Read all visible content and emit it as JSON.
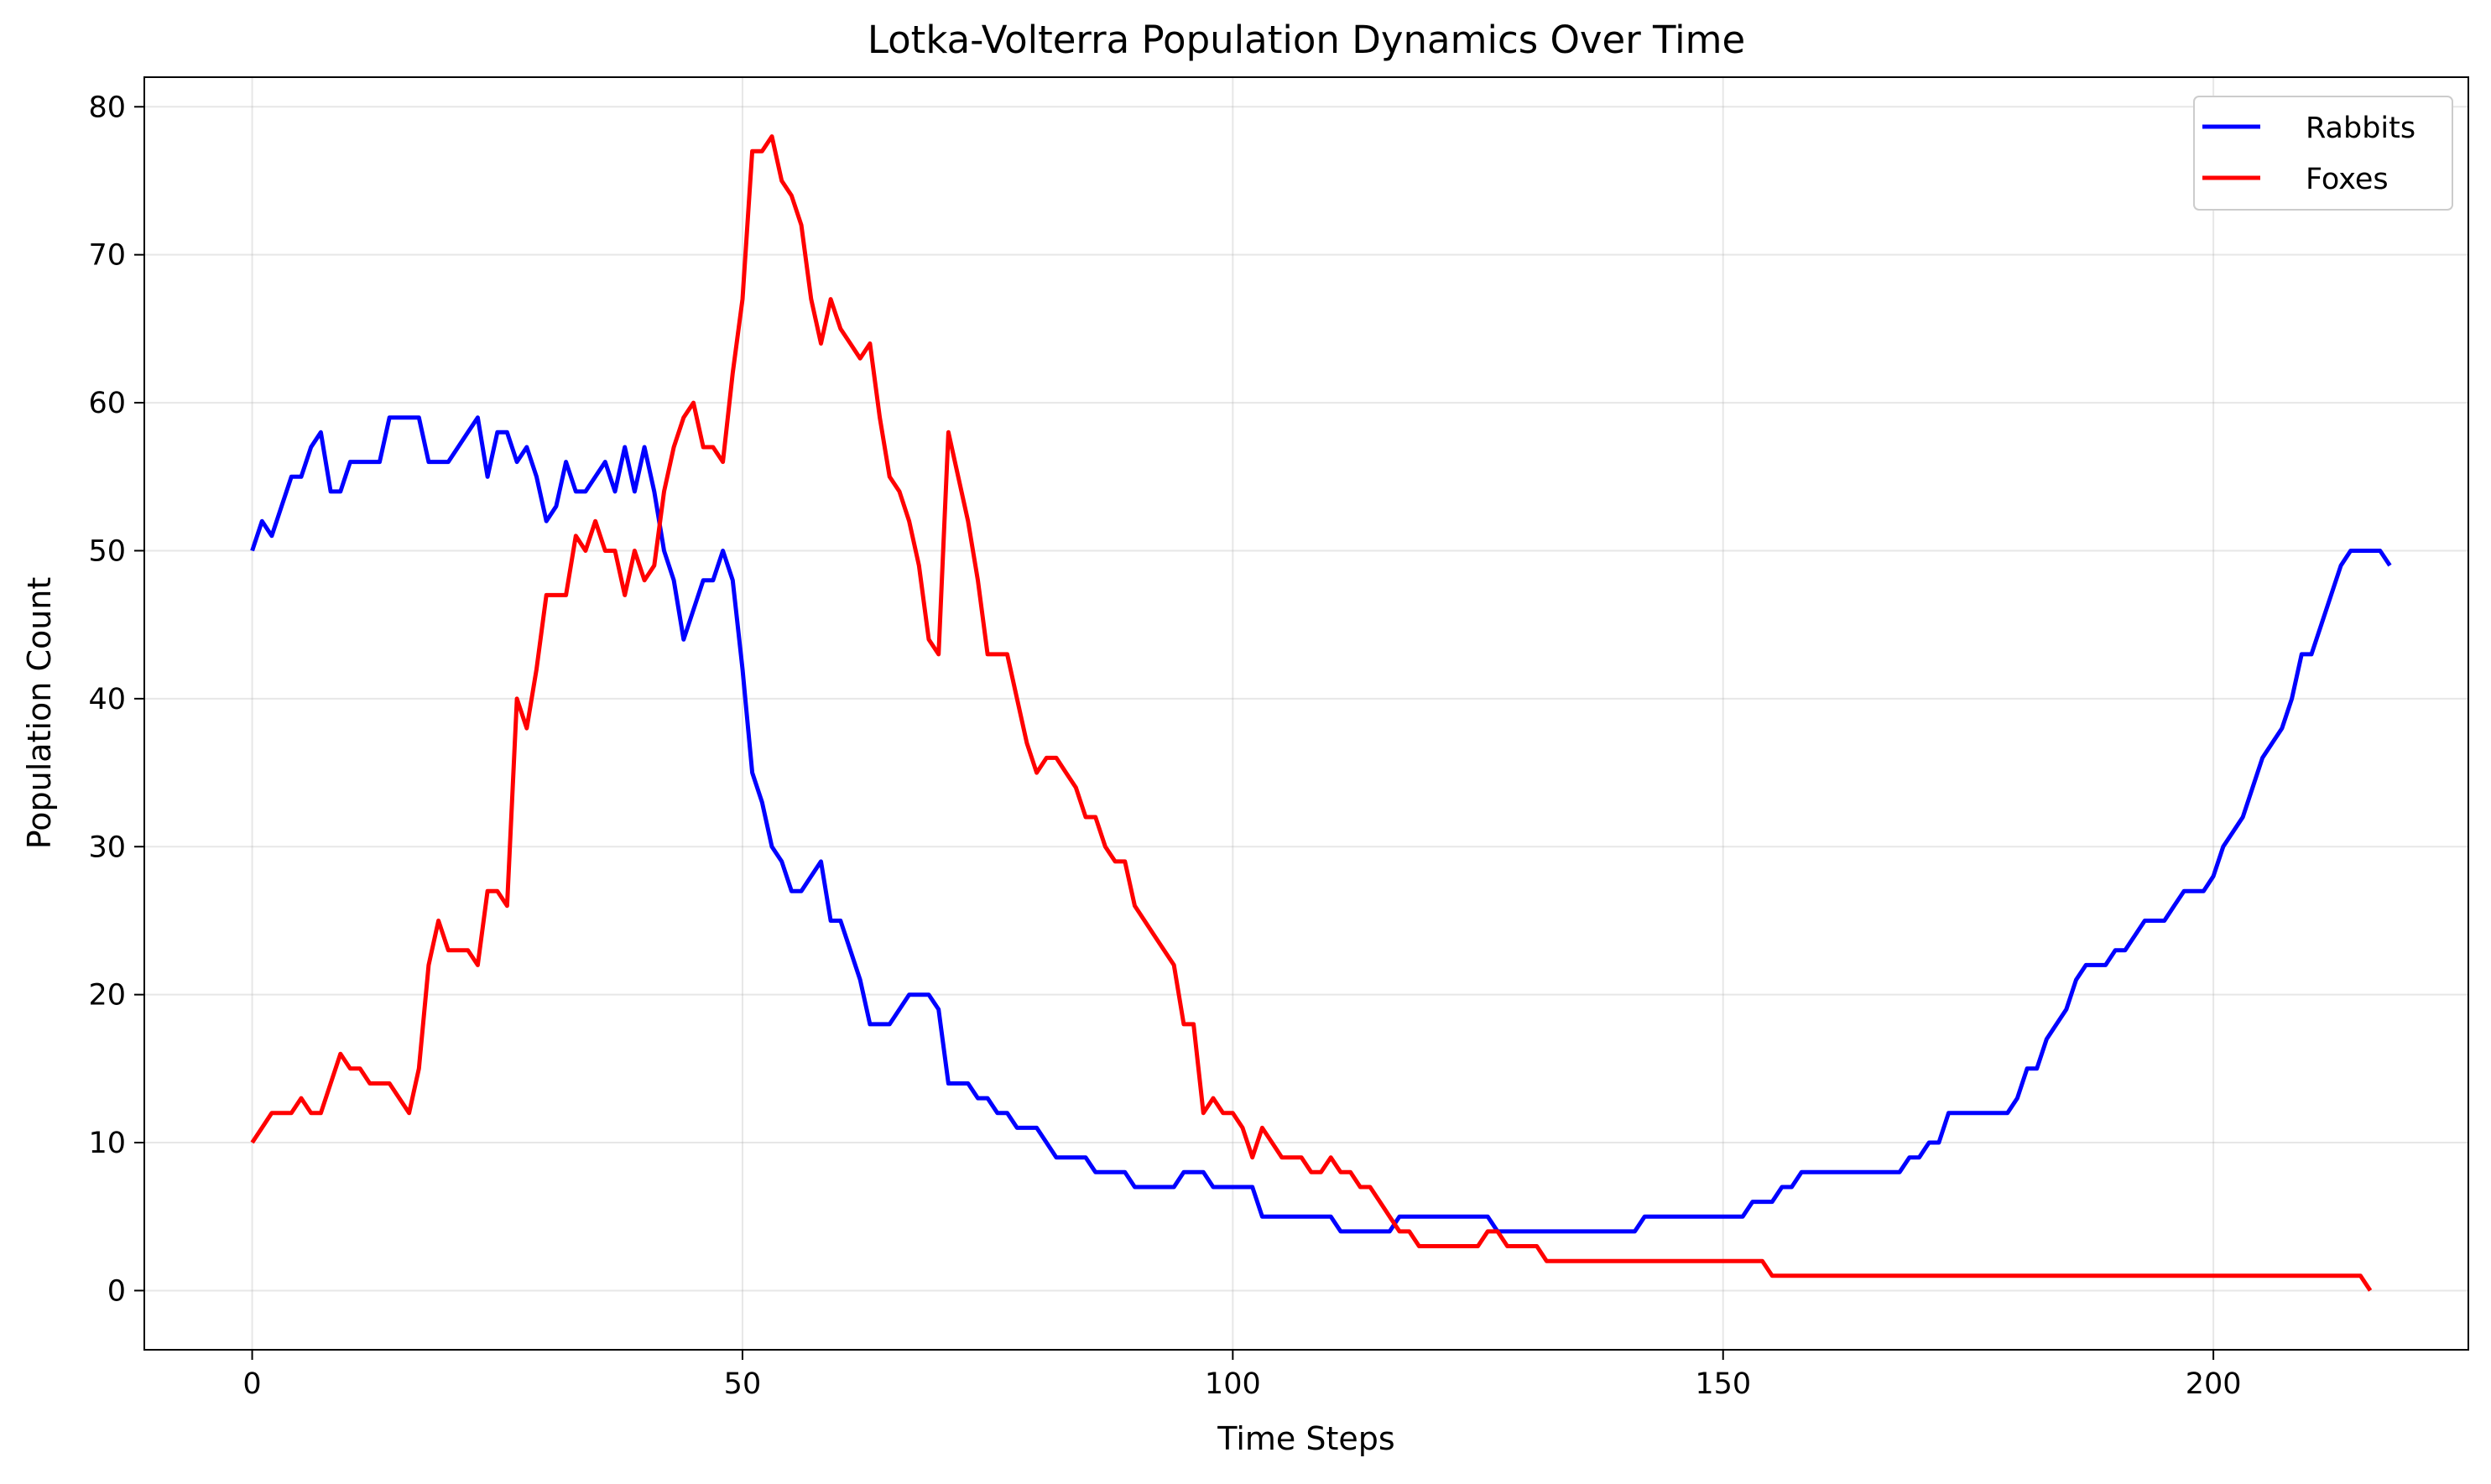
{
  "chart_data": {
    "type": "line",
    "title": "Lotka-Volterra Population Dynamics Over Time",
    "xlabel": "Time Steps",
    "ylabel": "Population Count",
    "xlim": [
      -11,
      226
    ],
    "ylim": [
      -4,
      82
    ],
    "xticks": [
      0,
      50,
      100,
      150,
      200
    ],
    "yticks": [
      0,
      10,
      20,
      30,
      40,
      50,
      60,
      70,
      80
    ],
    "grid": true,
    "legend_position": "top-right",
    "series": [
      {
        "name": "Rabbits",
        "color": "#0000ff",
        "values": [
          50,
          52,
          51,
          53,
          55,
          55,
          57,
          58,
          54,
          54,
          56,
          56,
          56,
          56,
          59,
          59,
          59,
          59,
          56,
          56,
          56,
          57,
          58,
          59,
          55,
          58,
          58,
          56,
          57,
          55,
          52,
          53,
          56,
          54,
          54,
          55,
          56,
          54,
          57,
          54,
          57,
          54,
          50,
          48,
          44,
          46,
          48,
          48,
          50,
          48,
          42,
          35,
          33,
          30,
          29,
          27,
          27,
          28,
          29,
          25,
          25,
          23,
          21,
          18,
          18,
          18,
          19,
          20,
          20,
          20,
          19,
          14,
          14,
          14,
          13,
          13,
          12,
          12,
          11,
          11,
          11,
          10,
          9,
          9,
          9,
          9,
          8,
          8,
          8,
          8,
          7,
          7,
          7,
          7,
          7,
          8,
          8,
          8,
          7,
          7,
          7,
          7,
          7,
          5,
          5,
          5,
          5,
          5,
          5,
          5,
          5,
          4,
          4,
          4,
          4,
          4,
          4,
          5,
          5,
          5,
          5,
          5,
          5,
          5,
          5,
          5,
          5,
          4,
          4,
          4,
          4,
          4,
          4,
          4,
          4,
          4,
          4,
          4,
          4,
          4,
          4,
          4,
          5,
          5,
          5,
          5,
          5,
          5,
          5,
          5,
          5,
          5,
          5,
          6,
          6,
          6,
          7,
          7,
          8,
          8,
          8,
          8,
          8,
          8,
          8,
          8,
          8,
          8,
          8,
          9,
          9,
          10,
          10,
          12,
          12,
          12,
          12,
          12,
          12,
          12,
          13,
          15,
          15,
          17,
          18,
          19,
          21,
          22,
          22,
          22,
          23,
          23,
          24,
          25,
          25,
          25,
          26,
          27,
          27,
          27,
          28,
          30,
          31,
          32,
          34,
          36,
          37,
          38,
          40,
          43,
          43,
          45,
          47,
          49,
          50,
          50,
          50,
          50,
          49
        ]
      },
      {
        "name": "Foxes",
        "color": "#ff0000",
        "values": [
          10,
          11,
          12,
          12,
          12,
          13,
          12,
          12,
          14,
          16,
          15,
          15,
          14,
          14,
          14,
          13,
          12,
          15,
          22,
          25,
          23,
          23,
          23,
          22,
          27,
          27,
          26,
          40,
          38,
          42,
          47,
          47,
          47,
          51,
          50,
          52,
          50,
          50,
          47,
          50,
          48,
          49,
          54,
          57,
          59,
          60,
          57,
          57,
          56,
          62,
          67,
          77,
          77,
          78,
          75,
          74,
          72,
          67,
          64,
          67,
          65,
          64,
          63,
          64,
          59,
          55,
          54,
          52,
          49,
          44,
          43,
          58,
          55,
          52,
          48,
          43,
          43,
          43,
          40,
          37,
          35,
          36,
          36,
          35,
          34,
          32,
          32,
          30,
          29,
          29,
          26,
          25,
          24,
          23,
          22,
          18,
          18,
          12,
          13,
          12,
          12,
          11,
          9,
          11,
          10,
          9,
          9,
          9,
          8,
          8,
          9,
          8,
          8,
          7,
          7,
          6,
          5,
          4,
          4,
          3,
          3,
          3,
          3,
          3,
          3,
          3,
          4,
          4,
          3,
          3,
          3,
          3,
          2,
          2,
          2,
          2,
          2,
          2,
          2,
          2,
          2,
          2,
          2,
          2,
          2,
          2,
          2,
          2,
          2,
          2,
          2,
          2,
          2,
          2,
          2,
          1,
          1,
          1,
          1,
          1,
          1,
          1,
          1,
          1,
          1,
          1,
          1,
          1,
          1,
          1,
          1,
          1,
          1,
          1,
          1,
          1,
          1,
          1,
          1,
          1,
          1,
          1,
          1,
          1,
          1,
          1,
          1,
          1,
          1,
          1,
          1,
          1,
          1,
          1,
          1,
          1,
          1,
          1,
          1,
          1,
          1,
          1,
          1,
          1,
          1,
          1,
          1,
          1,
          1,
          1,
          1,
          1,
          1,
          1,
          1,
          1,
          0
        ]
      }
    ]
  }
}
